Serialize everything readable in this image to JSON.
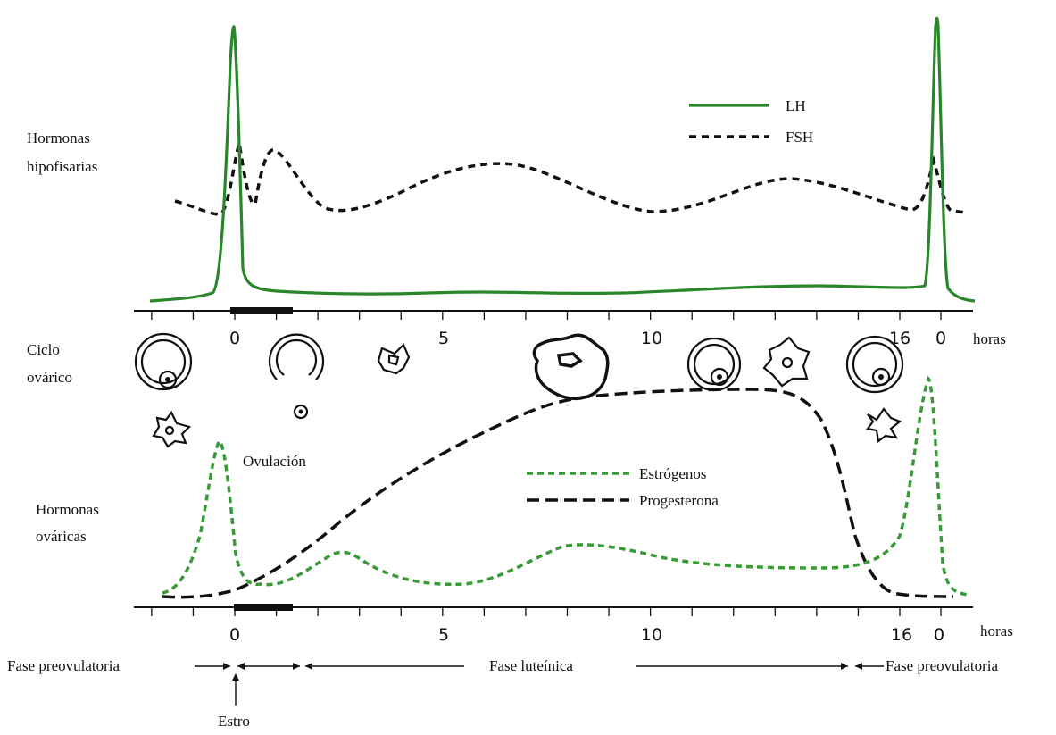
{
  "labels": {
    "pituitary_hormones": [
      "Hormonas",
      "hipofisarias"
    ],
    "ovarian_cycle": [
      "Ciclo",
      "ovárico"
    ],
    "ovarian_hormones": [
      "Hormonas",
      "ováricas"
    ],
    "ovulation": "Ovulación",
    "estrus": "Estro"
  },
  "legend_top": {
    "lh": "LH",
    "fsh": "FSH"
  },
  "legend_bottom": {
    "estrogens": "Estrógenos",
    "progesterone": "Progesterona"
  },
  "axis_top": {
    "ticks": [
      "0",
      "5",
      "10",
      "16",
      "0"
    ],
    "unit": "horas"
  },
  "axis_bottom": {
    "ticks": [
      "0",
      "5",
      "10",
      "16",
      "0"
    ],
    "unit": "horas"
  },
  "phases": {
    "left": "Fase preovulatoria",
    "middle": "Fase luteínica",
    "right": "Fase preovulatoria"
  },
  "colors": {
    "lh": "#2a862a",
    "estrogens": "#3a9a3a",
    "fsh": "#111111",
    "progesterone": "#111111"
  },
  "structures": [
    "follicle",
    "ruptured-follicle",
    "ovum",
    "corpus-luteum-small",
    "corpus-luteum-large",
    "follicle",
    "regressing-corpus-luteum",
    "follicle",
    "corpus-albicans",
    "corpus-albicans"
  ],
  "chart_data": [
    {
      "type": "line",
      "title": "",
      "xlabel": "horas",
      "series": [
        {
          "name": "LH",
          "x": [
            -2,
            -1,
            -0.3,
            -0.1,
            0,
            0.1,
            0.3,
            1,
            3,
            5,
            7,
            9,
            11,
            13,
            14.5,
            15.5,
            15.9,
            16,
            16.1,
            16.3,
            17
          ],
          "y": [
            0.05,
            0.07,
            0.15,
            0.7,
            1.0,
            0.7,
            0.1,
            0.04,
            0.05,
            0.06,
            0.07,
            0.07,
            0.09,
            0.1,
            0.1,
            0.12,
            0.5,
            1.0,
            0.5,
            0.1,
            0.05
          ]
        },
        {
          "name": "FSH",
          "x": [
            -2,
            -1,
            -0.4,
            -0.1,
            0.3,
            1,
            1.7,
            3,
            5,
            6.5,
            8,
            10,
            12,
            13.5,
            15,
            15.7,
            16,
            16.4,
            17
          ],
          "y": [
            0.4,
            0.35,
            0.45,
            0.75,
            0.55,
            0.75,
            0.55,
            0.35,
            0.5,
            0.55,
            0.45,
            0.35,
            0.48,
            0.5,
            0.4,
            0.45,
            0.7,
            0.45,
            0.35
          ]
        }
      ]
    },
    {
      "type": "line",
      "title": "",
      "xlabel": "horas",
      "series": [
        {
          "name": "Estrógenos",
          "x": [
            -2,
            -1,
            -0.5,
            -0.3,
            0,
            0.5,
            1,
            2,
            3,
            4,
            6,
            7.5,
            9,
            11,
            14,
            15.5,
            16,
            16.2,
            16.5,
            17
          ],
          "y": [
            0.05,
            0.2,
            0.9,
            0.6,
            0.1,
            0.05,
            0.1,
            0.3,
            0.15,
            0.1,
            0.2,
            0.35,
            0.3,
            0.18,
            0.18,
            0.5,
            1.0,
            0.5,
            0.1,
            0.05
          ]
        },
        {
          "name": "Progesterona",
          "x": [
            -2,
            -1,
            0,
            1,
            2,
            3,
            4,
            5,
            6,
            7,
            8,
            9,
            10,
            11,
            12,
            13,
            13.5,
            14,
            14.5,
            15,
            15.5,
            16,
            17
          ],
          "y": [
            0.05,
            0.05,
            0.1,
            0.25,
            0.35,
            0.45,
            0.55,
            0.65,
            0.75,
            0.85,
            0.9,
            0.92,
            0.94,
            0.95,
            0.95,
            0.92,
            0.85,
            0.6,
            0.3,
            0.1,
            0.05,
            0.04,
            0.04
          ]
        }
      ]
    }
  ]
}
